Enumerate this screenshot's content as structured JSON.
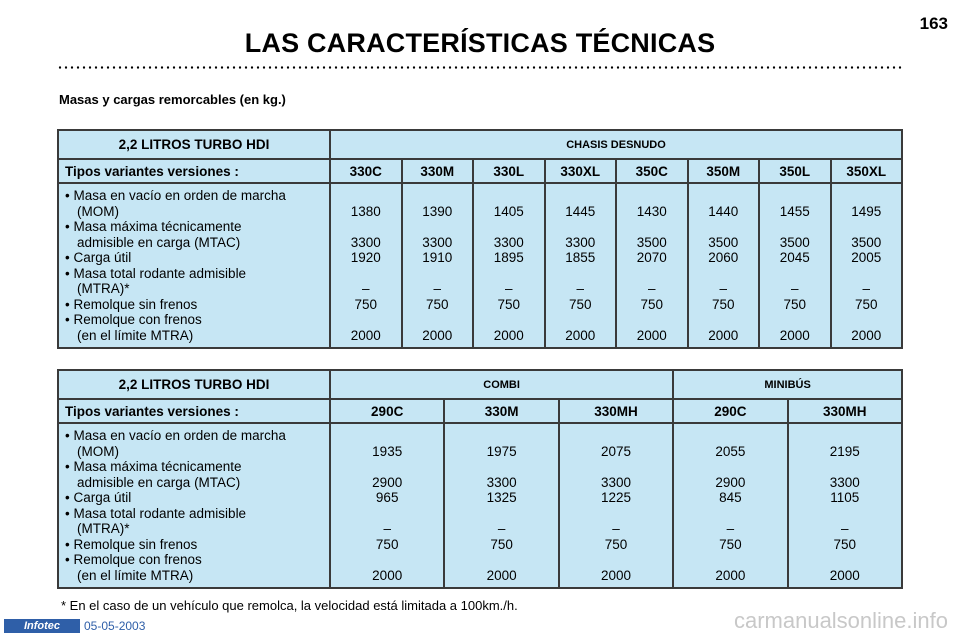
{
  "header": {
    "title": "LAS CARACTERÍSTICAS TÉCNICAS",
    "page_number": "163"
  },
  "subtitle": "Masas y cargas remorcables (en kg.)",
  "row_labels": [
    [
      "• Masa en vacío en orden de marcha",
      "(MOM)"
    ],
    [
      "• Masa máxima técnicamente",
      "admisible en carga (MTAC)"
    ],
    [
      "• Carga útil"
    ],
    [
      "• Masa total rodante admisible",
      "(MTRA)*"
    ],
    [
      "• Remolque sin frenos"
    ],
    [
      "• Remolque con frenos",
      "(en el límite MTRA)"
    ]
  ],
  "table1": {
    "engine": "2,2 LITROS TURBO HDI",
    "category": "CHASIS DESNUDO",
    "variants_label": "Tipos variantes versiones :",
    "columns": [
      "330C",
      "330M",
      "330L",
      "330XL",
      "350C",
      "350M",
      "350L",
      "350XL"
    ],
    "values": [
      [
        "1380",
        "3300",
        "1920",
        "–",
        "750",
        "2000"
      ],
      [
        "1390",
        "3300",
        "1910",
        "–",
        "750",
        "2000"
      ],
      [
        "1405",
        "3300",
        "1895",
        "–",
        "750",
        "2000"
      ],
      [
        "1445",
        "3300",
        "1855",
        "–",
        "750",
        "2000"
      ],
      [
        "1430",
        "3500",
        "2070",
        "–",
        "750",
        "2000"
      ],
      [
        "1440",
        "3500",
        "2060",
        "–",
        "750",
        "2000"
      ],
      [
        "1455",
        "3500",
        "2045",
        "–",
        "750",
        "2000"
      ],
      [
        "1495",
        "3500",
        "2005",
        "–",
        "750",
        "2000"
      ]
    ]
  },
  "table2": {
    "engine": "2,2 LITROS TURBO HDI",
    "category_1": "COMBI",
    "category_2": "MINIBÚS",
    "variants_label": "Tipos variantes versiones :",
    "columns": [
      "290C",
      "330M",
      "330MH",
      "290C",
      "330MH"
    ],
    "values": [
      [
        "1935",
        "2900",
        "965",
        "–",
        "750",
        "2000"
      ],
      [
        "1975",
        "3300",
        "1325",
        "–",
        "750",
        "2000"
      ],
      [
        "2075",
        "3300",
        "1225",
        "–",
        "750",
        "2000"
      ],
      [
        "2055",
        "2900",
        "845",
        "–",
        "750",
        "2000"
      ],
      [
        "2195",
        "3300",
        "1105",
        "–",
        "750",
        "2000"
      ]
    ]
  },
  "footnote": "* En el caso de un vehículo que remolca, la velocidad está limitada a 100km./h.",
  "footer": {
    "logo": "Infotec",
    "date": "05-05-2003",
    "watermark": "carmanualsonline.info"
  }
}
